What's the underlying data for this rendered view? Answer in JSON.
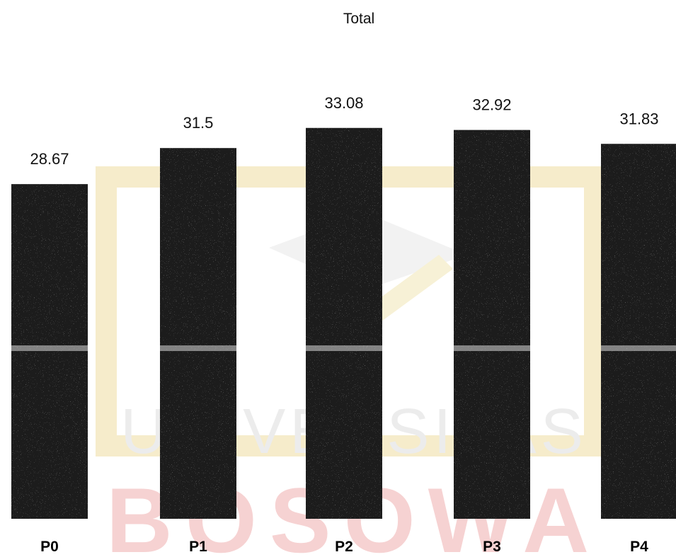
{
  "chart_data": {
    "type": "bar",
    "title": "Total",
    "categories": [
      "P0",
      "P1",
      "P2",
      "P3",
      "P4"
    ],
    "values": [
      28.67,
      31.5,
      33.08,
      32.92,
      31.83
    ],
    "value_labels": [
      "28.67",
      "31.5",
      "33.08",
      "32.92",
      "31.83"
    ],
    "xlabel": "",
    "ylabel": "",
    "grid": false,
    "legend": "none",
    "bar_color": "#1a1a1a"
  },
  "watermark": {
    "word_1": "UNIVERSITAS",
    "word_2": "BOSOWA",
    "colors": {
      "frame": "#f3e7b8",
      "text": "#e6e6e6",
      "banner": "#f4c9c9"
    }
  }
}
